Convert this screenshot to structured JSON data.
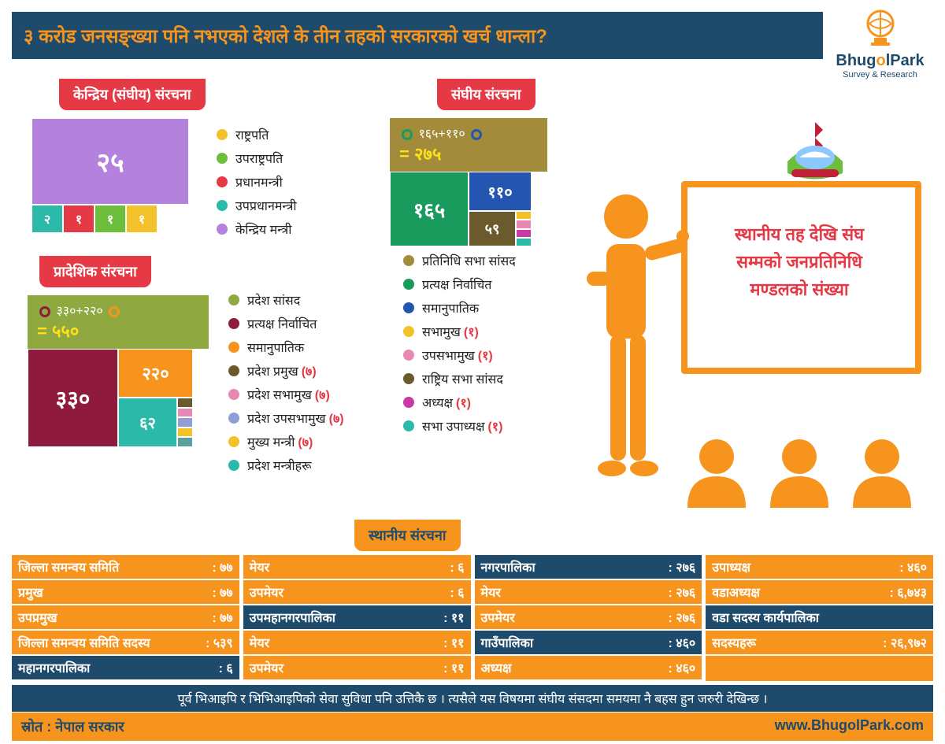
{
  "header": {
    "title": "३ करोड जनसङ्ख्या पनि नभएको देशले के तीन तहको सरकारको खर्च धान्ला?"
  },
  "logo": {
    "name_part1": "Bhug",
    "name_o": "o",
    "name_part2": "lPark",
    "tagline": "Survey & Research",
    "color_orange": "#f7941d",
    "color_blue": "#1e4a6b"
  },
  "board_text_l1": "स्थानीय तह देखि संघ",
  "board_text_l2": "सम्मको जनप्रतिनिधि",
  "board_text_l3": "मण्डलको संख्या",
  "central": {
    "heading": "केन्द्रिय (संघीय) संरचना",
    "big_value": "२५",
    "big_color": "#b482dd",
    "small": [
      {
        "v": "२",
        "c": "#2bb9a9"
      },
      {
        "v": "१",
        "c": "#e63946"
      },
      {
        "v": "१",
        "c": "#6bbf3a"
      },
      {
        "v": "१",
        "c": "#f3c22b"
      }
    ],
    "legend": [
      {
        "c": "#f3c22b",
        "t": "राष्ट्रपति"
      },
      {
        "c": "#6bbf3a",
        "t": "उपराष्ट्रपति"
      },
      {
        "c": "#e63946",
        "t": "प्रधानमन्त्री"
      },
      {
        "c": "#2bb9a9",
        "t": "उपप्रधानमन्त्री"
      },
      {
        "c": "#b482dd",
        "t": "केन्द्रिय मन्त्री"
      }
    ]
  },
  "provincial": {
    "heading": "प्रादेशिक संरचना",
    "sum_a": "३३०",
    "sum_b": "२२०",
    "sum_eq": "= ५५०",
    "v330": "३३०",
    "c330": "#8e1b3d",
    "v220": "२२०",
    "c220": "#f7941d",
    "v62": "६२",
    "c62": "#2bb9a9",
    "strip_colors": [
      "#6b5a2c",
      "#e889b4",
      "#8f9ed6",
      "#f3c22b",
      "#5aa0a0"
    ],
    "legend": [
      {
        "c": "#8fa83f",
        "t": "प्रदेश सांसद",
        "p": ""
      },
      {
        "c": "#8e1b3d",
        "t": "प्रत्यक्ष निर्वाचित",
        "p": ""
      },
      {
        "c": "#f7941d",
        "t": "समानुपातिक",
        "p": ""
      },
      {
        "c": "#6b5a2c",
        "t": "प्रदेश प्रमुख",
        "p": "(७)"
      },
      {
        "c": "#e889b4",
        "t": "प्रदेश सभामुख",
        "p": "(७)"
      },
      {
        "c": "#8f9ed6",
        "t": "प्रदेश उपसभामुख",
        "p": "(७)"
      },
      {
        "c": "#f3c22b",
        "t": "मुख्य मन्त्री",
        "p": "(७)"
      },
      {
        "c": "#2bb9a9",
        "t": "प्रदेश मन्त्रीहरू",
        "p": ""
      }
    ]
  },
  "federal": {
    "heading": "संघीय संरचना",
    "sum_a": "१६५",
    "sum_b": "११०",
    "sum_eq": "= २७५",
    "v165": "१६५",
    "c165": "#1a9b5e",
    "v110": "११०",
    "c110": "#2455b0",
    "v59": "५९",
    "c59": "#6b5a2c",
    "strip_colors": [
      "#f3c22b",
      "#e889b4",
      "#c93aa5",
      "#2bb9a9"
    ],
    "legend": [
      {
        "c": "#a28b3a",
        "t": "प्रतिनिधि सभा सांसद",
        "p": ""
      },
      {
        "c": "#1a9b5e",
        "t": "प्रत्यक्ष निर्वाचित",
        "p": ""
      },
      {
        "c": "#2455b0",
        "t": "समानुपातिक",
        "p": ""
      },
      {
        "c": "#f3c22b",
        "t": "सभामुख",
        "p": "(१)"
      },
      {
        "c": "#e889b4",
        "t": "उपसभामुख",
        "p": "(१)"
      },
      {
        "c": "#6b5a2c",
        "t": "राष्ट्रिय सभा सांसद",
        "p": ""
      },
      {
        "c": "#c93aa5",
        "t": "अध्यक्ष",
        "p": "(१)"
      },
      {
        "c": "#2bb9a9",
        "t": "सभा उपाध्यक्ष",
        "p": "(१)"
      }
    ]
  },
  "local": {
    "heading": "स्थानीय संरचना",
    "cols": [
      [
        {
          "k": "जिल्ला समन्वय समिति",
          "v": "७७",
          "hl": false
        },
        {
          "k": "प्रमुख",
          "v": "७७",
          "hl": false
        },
        {
          "k": "उपप्रमुख",
          "v": "७७",
          "hl": false
        },
        {
          "k": "जिल्ला समन्वय समिति सदस्य",
          "v": "५३९",
          "hl": false
        },
        {
          "k": "महानगरपालिका",
          "v": "६",
          "hl": true
        }
      ],
      [
        {
          "k": "मेयर",
          "v": "६",
          "hl": false
        },
        {
          "k": "उपमेयर",
          "v": "६",
          "hl": false
        },
        {
          "k": "उपमहानगरपालिका",
          "v": "११",
          "hl": true
        },
        {
          "k": "मेयर",
          "v": "११",
          "hl": false
        },
        {
          "k": "उपमेयर",
          "v": "११",
          "hl": false
        }
      ],
      [
        {
          "k": "नगरपालिका",
          "v": "२७६",
          "hl": true
        },
        {
          "k": "मेयर",
          "v": "२७६",
          "hl": false
        },
        {
          "k": "उपमेयर",
          "v": "२७६",
          "hl": false
        },
        {
          "k": "गाउँपालिका",
          "v": "४६०",
          "hl": true
        },
        {
          "k": "अध्यक्ष",
          "v": "४६०",
          "hl": false
        }
      ],
      [
        {
          "k": "उपाध्यक्ष",
          "v": "४६०",
          "hl": false
        },
        {
          "k": "वडाअध्यक्ष",
          "v": "६,७४३",
          "hl": false
        },
        {
          "k": "वडा सदस्य कार्यपालिका",
          "v": "",
          "hl": true
        },
        {
          "k": "सदस्यहरू",
          "v": "२६,९७२",
          "hl": false
        }
      ]
    ]
  },
  "footer": {
    "note": "पूर्व भिआइपि र भिभिआइपिको सेवा सुविधा पनि उत्तिकै छ । त्यसैले यस विषयमा संघीय संसदमा समयमा नै बहस हुन जरुरी देखिन्छ ।",
    "source": "स्रोत : नेपाल सरकार",
    "url": "www.BhugolPark.com"
  },
  "colors": {
    "primary": "#f7941d",
    "dark": "#1e4a6b",
    "red": "#e63946"
  }
}
